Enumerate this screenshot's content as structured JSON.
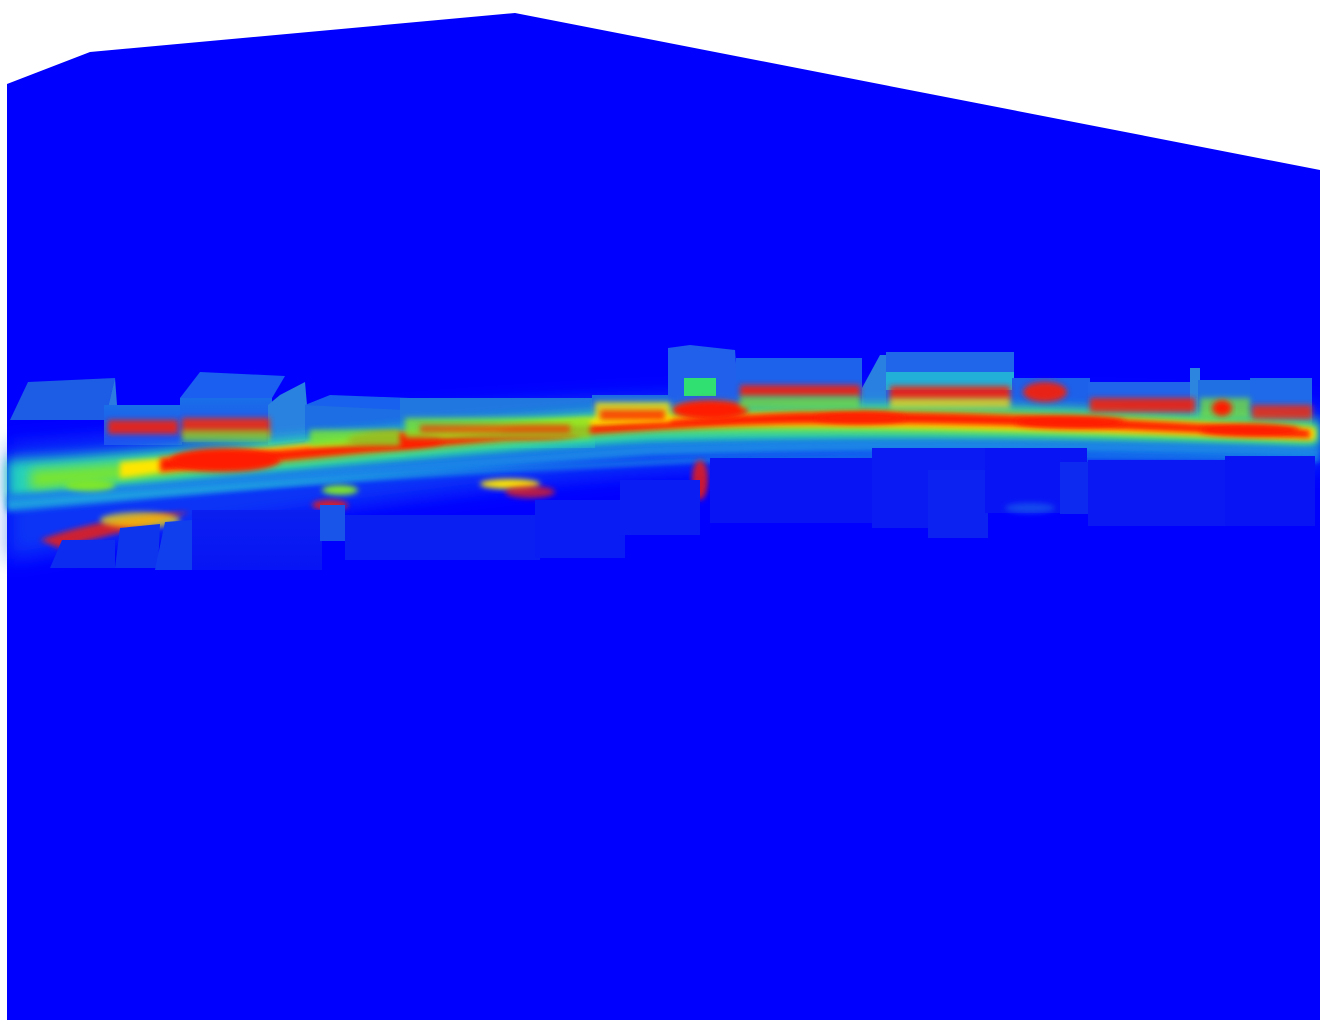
{
  "scene": {
    "colors": {
      "background": "#ffffff",
      "ground": "#0000ff",
      "low": "#0a30ff",
      "mid_low": "#1a8ae6",
      "mid": "#22d0c0",
      "mid_high": "#7ee62a",
      "high": "#ffe600",
      "peak": "#ff1e00"
    }
  }
}
